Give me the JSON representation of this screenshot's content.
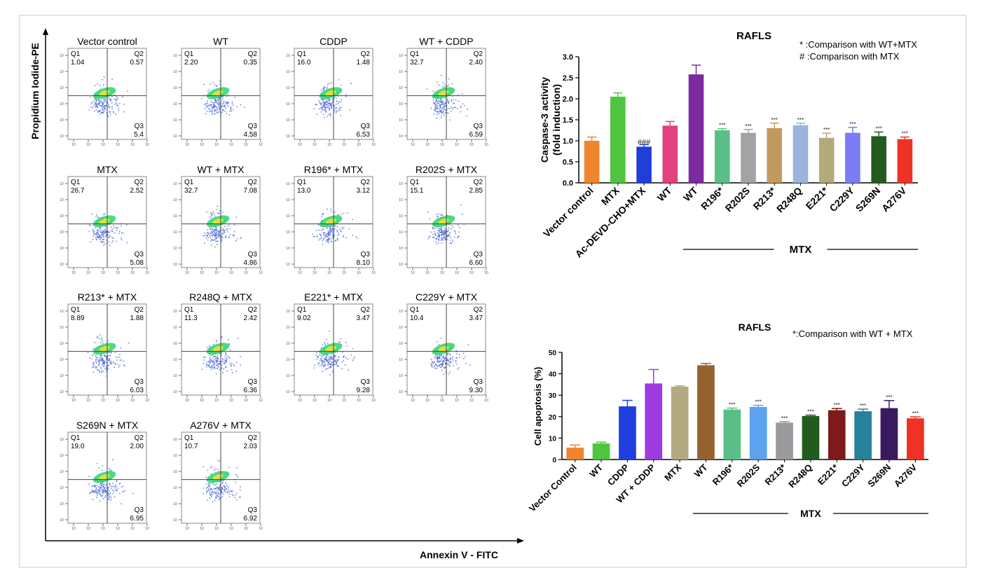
{
  "figure": {
    "x_axis_label": "Annexin V - FITC",
    "y_axis_label": "Propidium Iodide-PE",
    "colors": {
      "axis": "#000000",
      "frame": "#c8c8c8",
      "quad_line": "#444444",
      "dot_outer": "#3b5bd6",
      "dot_inner": "#2fd46a"
    }
  },
  "chart_data": [
    {
      "type": "scatter",
      "description_kind": "flow-cytometry-panels",
      "quadrant_labels": [
        "Q1",
        "Q2",
        "Q3"
      ],
      "panels": [
        {
          "title": "Vector control",
          "Q1": "1.04",
          "Q2": "0.57",
          "Q3": "5.4"
        },
        {
          "title": "WT",
          "Q1": "2.20",
          "Q2": "0.35",
          "Q3": "4.58"
        },
        {
          "title": "CDDP",
          "Q1": "16.0",
          "Q2": "1.48",
          "Q3": "6.53"
        },
        {
          "title": "WT + CDDP",
          "Q1": "32.7",
          "Q2": "2.40",
          "Q3": "6.59"
        },
        {
          "title": "MTX",
          "Q1": "26.7",
          "Q2": "2.52",
          "Q3": "5.08"
        },
        {
          "title": "WT + MTX",
          "Q1": "32.7",
          "Q2": "7.08",
          "Q3": "4.86"
        },
        {
          "title": "R196* + MTX",
          "Q1": "13.0",
          "Q2": "3.12",
          "Q3": "8.10"
        },
        {
          "title": "R202S + MTX",
          "Q1": "15.1",
          "Q2": "2.85",
          "Q3": "6.60"
        },
        {
          "title": "R213* + MTX",
          "Q1": "8.89",
          "Q2": "1.88",
          "Q3": "6.03"
        },
        {
          "title": "R248Q + MTX",
          "Q1": "11.3",
          "Q2": "2.42",
          "Q3": "6.36"
        },
        {
          "title": "E221* + MTX",
          "Q1": "9.02",
          "Q2": "3.47",
          "Q3": "9.28"
        },
        {
          "title": "C229Y + MTX",
          "Q1": "10.4",
          "Q2": "3.47",
          "Q3": "9.30"
        },
        {
          "title": "S269N + MTX",
          "Q1": "19.0",
          "Q2": "2.00",
          "Q3": "6.95"
        },
        {
          "title": "A276V + MTX",
          "Q1": "10.7",
          "Q2": "2.03",
          "Q3": "6.92"
        }
      ]
    },
    {
      "type": "bar",
      "title": "RAFLS",
      "ylabel": "Caspase-3 activity\n(fold induction)",
      "ylim": [
        0,
        3.0
      ],
      "yticks": [
        "0.0",
        "0.5",
        "1.0",
        "1.5",
        "2.0",
        "2.5",
        "3.0"
      ],
      "notes": [
        "* :Comparison with WT+MTX",
        "# :Comparison with MTX"
      ],
      "group_label": "MTX",
      "categories": [
        "Vector control",
        "MTX",
        "Ac-DEVD-CHO+MTX",
        "WT",
        "WT",
        "R196*",
        "R202S",
        "R213*",
        "R248Q",
        "E221*",
        "C229Y",
        "S269N",
        "A276V"
      ],
      "values": [
        1.0,
        2.05,
        0.86,
        1.36,
        2.58,
        1.25,
        1.19,
        1.3,
        1.37,
        1.07,
        1.19,
        1.11,
        1.04
      ],
      "errors": [
        0.09,
        0.09,
        0.05,
        0.1,
        0.22,
        0.04,
        0.08,
        0.12,
        0.05,
        0.11,
        0.13,
        0.1,
        0.05
      ],
      "significance": [
        "",
        "",
        "###",
        "",
        "",
        "***",
        "***",
        "***",
        "***",
        "***",
        "***",
        "***",
        "***"
      ],
      "colors": [
        "#f0852d",
        "#4fc43f",
        "#1f3fd8",
        "#e2407e",
        "#7d2a9e",
        "#59bf87",
        "#a3a3a6",
        "#c39a5d",
        "#9ab5d9",
        "#b4a97a",
        "#7b7bf5",
        "#215c1e",
        "#ee3226"
      ]
    },
    {
      "type": "bar",
      "title": "RAFLS",
      "ylabel": "Cell apoptosis (%)",
      "ylim": [
        0,
        50
      ],
      "yticks": [
        "0",
        "10",
        "20",
        "30",
        "40",
        "50"
      ],
      "notes": [
        "*:Comparison with WT + MTX"
      ],
      "group_label": "MTX",
      "categories": [
        "Vector Control",
        "WT",
        "CDDP",
        "WT + CDDP",
        "MTX",
        "WT",
        "R196*",
        "R202S",
        "R213*",
        "R248Q",
        "E221*",
        "C229Y",
        "S269N",
        "A276V"
      ],
      "values": [
        5.5,
        7.5,
        24.8,
        35.5,
        34.0,
        44.0,
        23.3,
        24.5,
        17.2,
        20.3,
        23.0,
        22.5,
        24.0,
        19.2
      ],
      "errors": [
        1.3,
        0.6,
        2.8,
        6.5,
        0.4,
        0.8,
        0.7,
        0.8,
        0.5,
        0.4,
        0.8,
        1.0,
        3.5,
        0.7
      ],
      "significance": [
        "",
        "",
        "",
        "",
        "",
        "",
        "***",
        "***",
        "***",
        "***",
        "***",
        "***",
        "***",
        "***"
      ],
      "colors": [
        "#f0852d",
        "#4fc43f",
        "#1f3fe0",
        "#9d3be0",
        "#b3aa84",
        "#956230",
        "#59bf87",
        "#5ba3ee",
        "#9a9a9e",
        "#215c1e",
        "#7d1a1a",
        "#27819a",
        "#3a1a5e",
        "#ee3226"
      ]
    }
  ]
}
